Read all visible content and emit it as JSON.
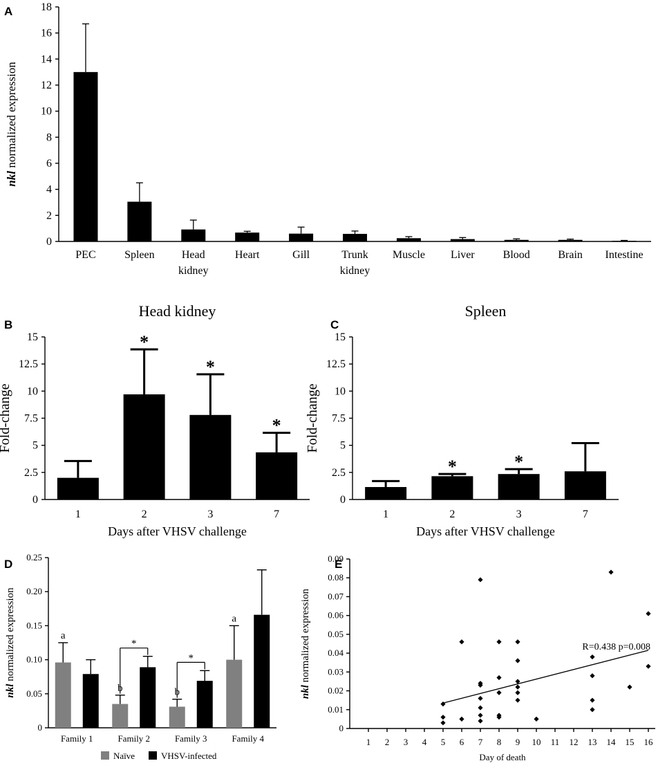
{
  "colors": {
    "bar": "#000000",
    "naive": "#808080",
    "infected": "#000000",
    "axis": "#000000"
  },
  "chart_data": [
    {
      "panel": "A",
      "type": "bar",
      "title": "",
      "ylabel_italic": "nkl",
      "ylabel_rest": " normalized expression",
      "xlabel": "",
      "categories": [
        "PEC",
        "Spleen",
        "Head|kidney",
        "Heart",
        "Gill",
        "Trunk|kidney",
        "Muscle",
        "Liver",
        "Blood",
        "Brain",
        "Intestine"
      ],
      "values": [
        13.0,
        3.05,
        0.92,
        0.68,
        0.6,
        0.58,
        0.25,
        0.18,
        0.12,
        0.12,
        0.05
      ],
      "errors": [
        3.7,
        1.45,
        0.72,
        0.1,
        0.5,
        0.22,
        0.12,
        0.12,
        0.08,
        0.06,
        0.03
      ],
      "ylim": [
        0,
        18
      ],
      "yticks": [
        "0",
        "2",
        "4",
        "6",
        "8",
        "10",
        "12",
        "14",
        "16",
        "18"
      ]
    },
    {
      "panel": "B",
      "type": "bar",
      "title": "Head kidney",
      "ylabel": "Fold-change",
      "xlabel": "Days after VHSV challenge",
      "categories": [
        "1",
        "2",
        "3",
        "7"
      ],
      "values": [
        2.0,
        9.7,
        7.8,
        4.35
      ],
      "errors": [
        1.55,
        4.15,
        3.75,
        1.8
      ],
      "significance": [
        "",
        "*",
        "*",
        "*"
      ],
      "ylim": [
        0,
        15
      ],
      "yticks": [
        "0",
        "2.5",
        "5",
        "7.5",
        "10",
        "12.5",
        "15"
      ]
    },
    {
      "panel": "C",
      "type": "bar",
      "title": "Spleen",
      "ylabel": "Fold-change",
      "xlabel": "Days after VHSV challenge",
      "categories": [
        "1",
        "2",
        "3",
        "7"
      ],
      "values": [
        1.15,
        2.15,
        2.35,
        2.6
      ],
      "errors": [
        0.55,
        0.2,
        0.45,
        2.6
      ],
      "significance": [
        "",
        "*",
        "*",
        ""
      ],
      "ylim": [
        0,
        15
      ],
      "yticks": [
        "0",
        "2.5",
        "5",
        "7.5",
        "10",
        "12.5",
        "15"
      ]
    },
    {
      "panel": "D",
      "type": "bar",
      "title": "",
      "ylabel_italic": "nkl",
      "ylabel_rest": " normalized expression",
      "xlabel": "",
      "categories": [
        "Family 1",
        "Family 2",
        "Family 3",
        "Family 4"
      ],
      "series": [
        {
          "name": "Naïve",
          "values": [
            0.096,
            0.035,
            0.031,
            0.1
          ],
          "errors": [
            0.029,
            0.013,
            0.011,
            0.05
          ],
          "letters": [
            "a",
            "b",
            "b",
            "a"
          ]
        },
        {
          "name": "VHSV-infected",
          "values": [
            0.079,
            0.089,
            0.069,
            0.166
          ],
          "errors": [
            0.021,
            0.016,
            0.015,
            0.066
          ]
        }
      ],
      "significance_brackets": [
        "",
        "*",
        "*",
        ""
      ],
      "ylim": [
        0,
        0.25
      ],
      "yticks": [
        "0",
        "0.05",
        "0.10",
        "0.15",
        "0.20",
        "0.25"
      ],
      "legend": "bottom"
    },
    {
      "panel": "E",
      "type": "scatter",
      "title": "",
      "ylabel_italic": "nkl",
      "ylabel_rest": " normalized expression",
      "xlabel": "Day of death",
      "xticks": [
        "1",
        "2",
        "3",
        "4",
        "5",
        "6",
        "7",
        "8",
        "9",
        "10",
        "11",
        "12",
        "13",
        "14",
        "15",
        "16"
      ],
      "yticks": [
        "0",
        "0.01",
        "0.02",
        "0.03",
        "0.04",
        "0.05",
        "0.06",
        "0.07",
        "0.08",
        "0.09"
      ],
      "xlim": [
        0,
        16
      ],
      "ylim": [
        0,
        0.09
      ],
      "points": [
        [
          5,
          0.013
        ],
        [
          5,
          0.006
        ],
        [
          5,
          0.003
        ],
        [
          6,
          0.046
        ],
        [
          6,
          0.005
        ],
        [
          7,
          0.079
        ],
        [
          7,
          0.024
        ],
        [
          7,
          0.023
        ],
        [
          7,
          0.016
        ],
        [
          7,
          0.011
        ],
        [
          7,
          0.007
        ],
        [
          7,
          0.004
        ],
        [
          8,
          0.046
        ],
        [
          8,
          0.027
        ],
        [
          8,
          0.019
        ],
        [
          8,
          0.007
        ],
        [
          8,
          0.006
        ],
        [
          9,
          0.046
        ],
        [
          9,
          0.036
        ],
        [
          9,
          0.025
        ],
        [
          9,
          0.022
        ],
        [
          9,
          0.019
        ],
        [
          9,
          0.015
        ],
        [
          10,
          0.005
        ],
        [
          13,
          0.038
        ],
        [
          13,
          0.028
        ],
        [
          13,
          0.015
        ],
        [
          13,
          0.01
        ],
        [
          14,
          0.083
        ],
        [
          15,
          0.022
        ],
        [
          16,
          0.061
        ],
        [
          16,
          0.033
        ]
      ],
      "trendline": {
        "x1": 5,
        "y1": 0.0135,
        "x2": 16,
        "y2": 0.0415
      },
      "annotation": "R=0.438  p=0.008"
    }
  ]
}
